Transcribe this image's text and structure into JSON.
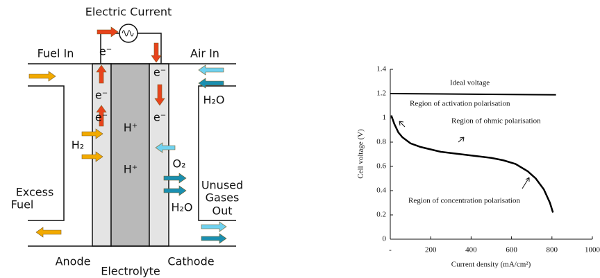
{
  "diagram": {
    "labels": [
      "Electric Current",
      "Fuel In",
      "Air In",
      "e⁻",
      "e⁻",
      "e⁻",
      "e⁻",
      "e⁻",
      "H⁺",
      "H⁺",
      "H₂",
      "H₂O",
      "O₂",
      "H₂O",
      "Excess",
      "Fuel",
      "Unused",
      "Gases",
      "Out",
      "Anode",
      "Electrolyte",
      "Cathode"
    ]
  },
  "chart_data": {
    "type": "line",
    "ylabel": "Cell voltage (V)",
    "xlabel": "Current density (mA/cm²)",
    "annotations": [
      "Ideal voltage",
      "Region of activation polarisation",
      "Region of ohmic polarisation",
      "Region of concentration polarisation"
    ],
    "series": [
      {
        "color": "#000000",
        "x": [
          0,
          820
        ],
        "values": [
          1.2,
          1.19
        ]
      },
      {
        "color": "#000000",
        "x": [
          5,
          20,
          40,
          60,
          100,
          150,
          200,
          250,
          300,
          400,
          500,
          560,
          620,
          680,
          720,
          760,
          790,
          805
        ],
        "values": [
          1.02,
          0.95,
          0.88,
          0.84,
          0.79,
          0.76,
          0.74,
          0.72,
          0.71,
          0.69,
          0.67,
          0.65,
          0.62,
          0.56,
          0.5,
          0.41,
          0.3,
          0.22
        ]
      }
    ],
    "xlim": [
      0,
      1000
    ],
    "ylim": [
      0,
      1.4
    ],
    "xticks": [
      {
        "value": 0,
        "label": "-"
      },
      200,
      400,
      600,
      800,
      1000
    ],
    "yticks": [
      0,
      0.2,
      0.4,
      0.6,
      0.8,
      1.0,
      1.2,
      1.4
    ]
  }
}
